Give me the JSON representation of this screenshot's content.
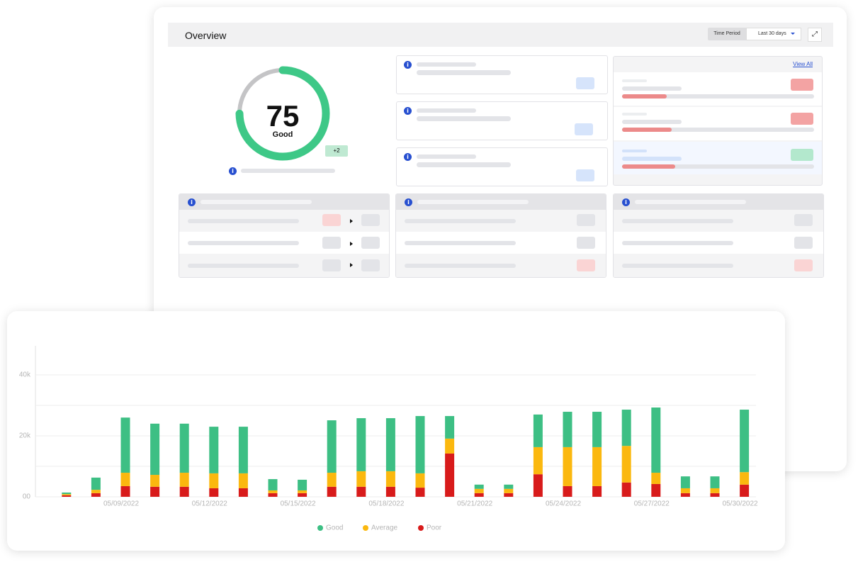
{
  "header": {
    "title": "Overview",
    "time_period_label": "Time Period",
    "time_period_value": "Last 30 days"
  },
  "score": {
    "value": 75,
    "label": "Good",
    "change": "+2"
  },
  "list_panel": {
    "link": "View All"
  },
  "chart_data": {
    "type": "stacked_bar",
    "categories": [
      null,
      null,
      "05/09/2022",
      null,
      null,
      "05/12/2022",
      null,
      null,
      "05/15/2022",
      null,
      null,
      "05/18/2022",
      null,
      null,
      "05/21/2022",
      null,
      null,
      "05/24/2022",
      null,
      null,
      "05/27/2022",
      null,
      null,
      "05/30/2022"
    ],
    "series": [
      {
        "name": "Good",
        "color": "#3dbf84",
        "values": [
          500,
          4000,
          18100,
          16800,
          16100,
          15300,
          15300,
          3700,
          3500,
          17200,
          17400,
          17400,
          18800,
          7400,
          1400,
          1400,
          10700,
          11600,
          11600,
          11900,
          21400,
          3900,
          3900,
          20500
        ]
      },
      {
        "name": "Average",
        "color": "#fbb80f",
        "values": [
          400,
          1100,
          4400,
          3900,
          4600,
          4900,
          4900,
          900,
          900,
          4600,
          5100,
          5100,
          4700,
          4900,
          1400,
          1400,
          8900,
          12800,
          12800,
          12000,
          3700,
          1600,
          1600,
          4100
        ]
      },
      {
        "name": "Poor",
        "color": "#d81b1b",
        "values": [
          500,
          1200,
          3500,
          3300,
          3300,
          2800,
          2800,
          1200,
          1200,
          3300,
          3300,
          3300,
          3000,
          14200,
          1200,
          1200,
          7400,
          3500,
          3500,
          4700,
          4200,
          1200,
          1200,
          4000
        ]
      }
    ],
    "ylim": [
      0,
      50000
    ],
    "yticks": [
      {
        "value": 0,
        "label": "00"
      },
      {
        "value": 20000,
        "label": "20k"
      },
      {
        "value": 40000,
        "label": "40k"
      }
    ],
    "ygrid": [
      0,
      10000,
      20000,
      30000,
      40000
    ],
    "grid": true,
    "legend": "bottom"
  }
}
